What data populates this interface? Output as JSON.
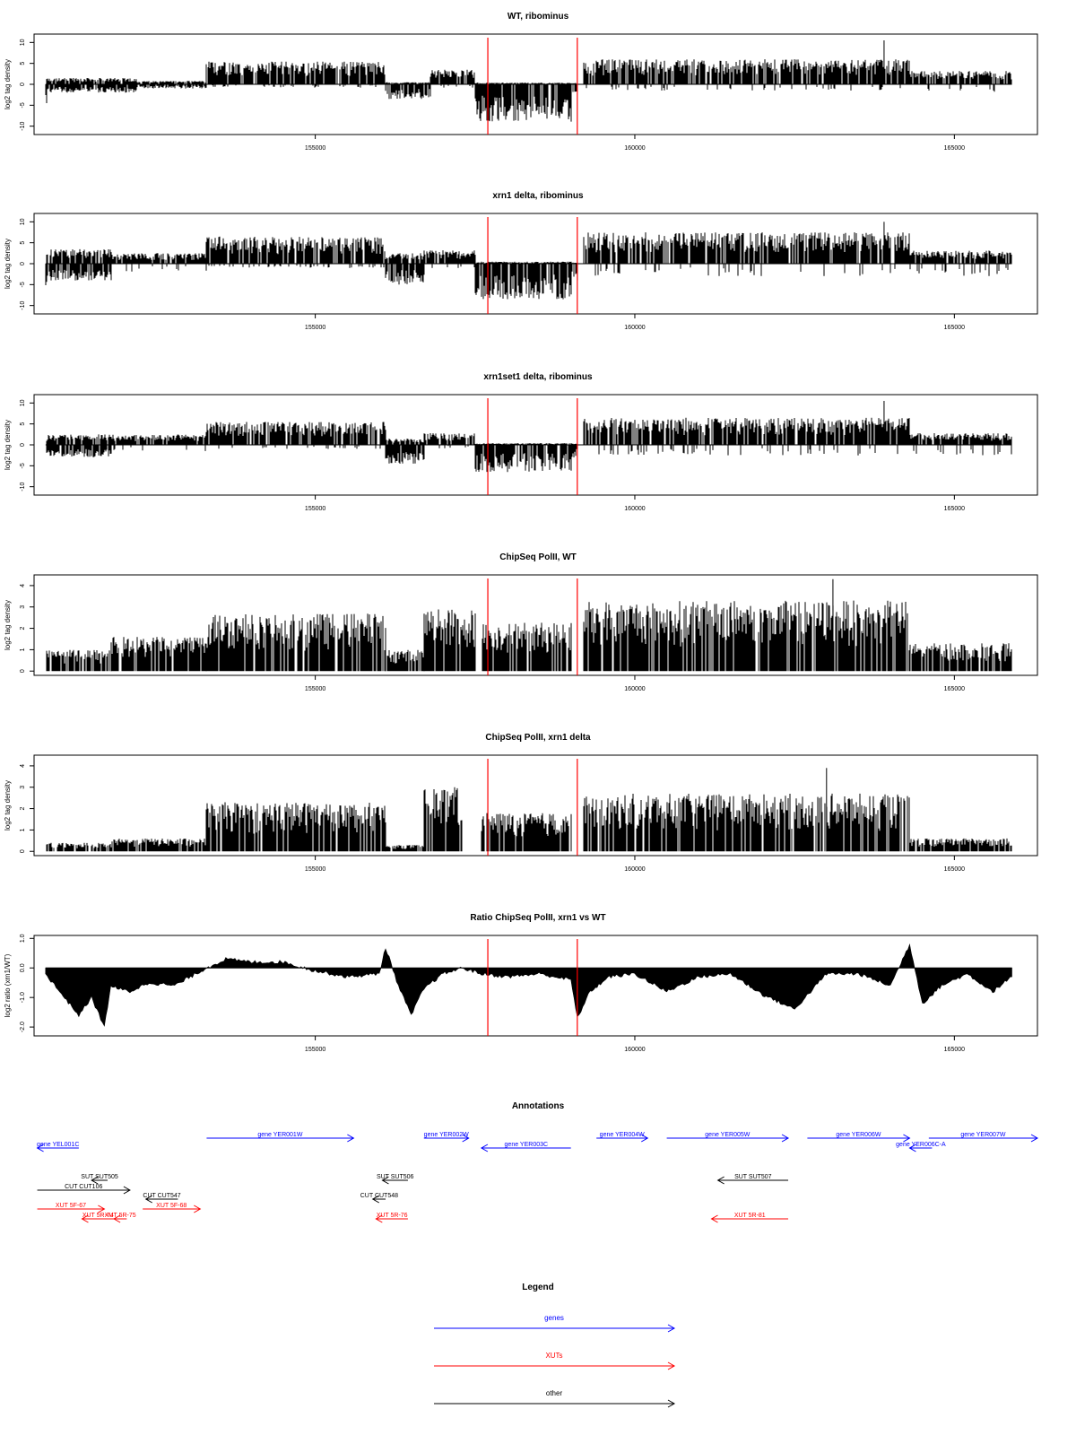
{
  "chart_data": [
    {
      "type": "bar",
      "title": "WT, ribominus",
      "ylabel": "log2 tag density",
      "xlabel": "",
      "xlim": [
        150600,
        166300
      ],
      "ylim": [
        -12,
        12
      ],
      "yticks": [
        -10,
        -5,
        0,
        5,
        10
      ],
      "xticks": [
        155000,
        160000,
        165000
      ],
      "zero_line": true,
      "markers": [
        157700,
        159100
      ],
      "marker_color": "#ff0000",
      "segments": [
        {
          "start": 150780,
          "end": 150800,
          "pos": 0,
          "neg": 4.5
        },
        {
          "start": 150800,
          "end": 152200,
          "pos": 1.5,
          "neg": 2
        },
        {
          "start": 152200,
          "end": 153300,
          "pos": 0.8,
          "neg": 1
        },
        {
          "start": 153300,
          "end": 156100,
          "pos": 5.5,
          "neg": 0.8
        },
        {
          "start": 156100,
          "end": 156800,
          "pos": 0.5,
          "neg": 3.5
        },
        {
          "start": 156800,
          "end": 157500,
          "pos": 3.5,
          "neg": 0.8
        },
        {
          "start": 157500,
          "end": 159000,
          "pos": 0.4,
          "neg": 9
        },
        {
          "start": 159000,
          "end": 159100,
          "pos": 0.3,
          "neg": 2
        },
        {
          "start": 159200,
          "end": 164300,
          "pos": 6,
          "neg": 1.5
        },
        {
          "start": 164300,
          "end": 165900,
          "pos": 3.2,
          "neg": 1.8
        }
      ],
      "peaks": [
        {
          "x": 163900,
          "y": 10.5
        }
      ]
    },
    {
      "type": "bar",
      "title": "xrn1 delta, ribominus",
      "ylabel": "log2 tag density",
      "xlabel": "",
      "xlim": [
        150600,
        166300
      ],
      "ylim": [
        -12,
        12
      ],
      "yticks": [
        -10,
        -5,
        0,
        5,
        10
      ],
      "xticks": [
        155000,
        160000,
        165000
      ],
      "zero_line": true,
      "markers": [
        157700,
        159100
      ],
      "marker_color": "#ff0000",
      "segments": [
        {
          "start": 150780,
          "end": 150800,
          "pos": 0,
          "neg": 7
        },
        {
          "start": 150800,
          "end": 151800,
          "pos": 3.5,
          "neg": 4
        },
        {
          "start": 151800,
          "end": 153300,
          "pos": 2.5,
          "neg": 2
        },
        {
          "start": 153300,
          "end": 156100,
          "pos": 6.5,
          "neg": 1
        },
        {
          "start": 156100,
          "end": 156700,
          "pos": 2.5,
          "neg": 5
        },
        {
          "start": 156700,
          "end": 157500,
          "pos": 3.2,
          "neg": 1.2
        },
        {
          "start": 157500,
          "end": 159000,
          "pos": 0.5,
          "neg": 8.5
        },
        {
          "start": 159000,
          "end": 159100,
          "pos": 0.3,
          "neg": 4
        },
        {
          "start": 159200,
          "end": 164300,
          "pos": 7.5,
          "neg": 3
        },
        {
          "start": 164300,
          "end": 165900,
          "pos": 3.2,
          "neg": 3
        }
      ],
      "peaks": [
        {
          "x": 163900,
          "y": 10
        }
      ]
    },
    {
      "type": "bar",
      "title": "xrn1set1 delta, ribominus",
      "ylabel": "log2 tag density",
      "xlabel": "",
      "xlim": [
        150600,
        166300
      ],
      "ylim": [
        -12,
        12
      ],
      "yticks": [
        -10,
        -5,
        0,
        5,
        10
      ],
      "xticks": [
        155000,
        160000,
        165000
      ],
      "zero_line": true,
      "markers": [
        157700,
        159100
      ],
      "marker_color": "#ff0000",
      "segments": [
        {
          "start": 150780,
          "end": 150800,
          "pos": 0,
          "neg": 3
        },
        {
          "start": 150800,
          "end": 151800,
          "pos": 2.5,
          "neg": 3
        },
        {
          "start": 151800,
          "end": 153300,
          "pos": 2.5,
          "neg": 1.5
        },
        {
          "start": 153300,
          "end": 156100,
          "pos": 5.5,
          "neg": 1
        },
        {
          "start": 156100,
          "end": 156700,
          "pos": 1.5,
          "neg": 4.5
        },
        {
          "start": 156700,
          "end": 157500,
          "pos": 2.8,
          "neg": 0.8
        },
        {
          "start": 157500,
          "end": 159000,
          "pos": 0.4,
          "neg": 6.5
        },
        {
          "start": 159000,
          "end": 159100,
          "pos": 0.3,
          "neg": 3
        },
        {
          "start": 159200,
          "end": 164300,
          "pos": 6.5,
          "neg": 2.5
        },
        {
          "start": 164300,
          "end": 165900,
          "pos": 2.8,
          "neg": 2.5
        }
      ],
      "peaks": [
        {
          "x": 163900,
          "y": 10.5
        }
      ]
    },
    {
      "type": "bar",
      "title": "ChipSeq PolII, WT",
      "ylabel": "log2 tag density",
      "xlabel": "",
      "xlim": [
        150600,
        166300
      ],
      "ylim": [
        -0.2,
        4.5
      ],
      "yticks": [
        0,
        1,
        2,
        3,
        4
      ],
      "xticks": [
        155000,
        160000,
        165000
      ],
      "zero_line": false,
      "markers": [
        157700,
        159100
      ],
      "marker_color": "#ff0000",
      "segments": [
        {
          "start": 150800,
          "end": 151800,
          "pos": 1,
          "neg": 0
        },
        {
          "start": 151800,
          "end": 153300,
          "pos": 1.6,
          "neg": 0
        },
        {
          "start": 153300,
          "end": 156100,
          "pos": 2.7,
          "neg": 0
        },
        {
          "start": 156100,
          "end": 156700,
          "pos": 1,
          "neg": 0
        },
        {
          "start": 156700,
          "end": 157500,
          "pos": 2.9,
          "neg": 0
        },
        {
          "start": 157600,
          "end": 159000,
          "pos": 2.3,
          "neg": 0
        },
        {
          "start": 159200,
          "end": 164300,
          "pos": 3.3,
          "neg": 0
        },
        {
          "start": 164300,
          "end": 165900,
          "pos": 1.3,
          "neg": 0
        }
      ],
      "peaks": [
        {
          "x": 163100,
          "y": 4.3
        }
      ]
    },
    {
      "type": "bar",
      "title": "ChipSeq PolII, xrn1 delta",
      "ylabel": "log2 tag density",
      "xlabel": "",
      "xlim": [
        150600,
        166300
      ],
      "ylim": [
        -0.2,
        4.5
      ],
      "yticks": [
        0,
        1,
        2,
        3,
        4
      ],
      "xticks": [
        155000,
        160000,
        165000
      ],
      "zero_line": false,
      "markers": [
        157700,
        159100
      ],
      "marker_color": "#ff0000",
      "segments": [
        {
          "start": 150800,
          "end": 151800,
          "pos": 0.4,
          "neg": 0
        },
        {
          "start": 151800,
          "end": 153300,
          "pos": 0.6,
          "neg": 0
        },
        {
          "start": 153300,
          "end": 156100,
          "pos": 2.3,
          "neg": 0
        },
        {
          "start": 156100,
          "end": 156700,
          "pos": 0.3,
          "neg": 0
        },
        {
          "start": 156700,
          "end": 157300,
          "pos": 3.0,
          "neg": 0
        },
        {
          "start": 157600,
          "end": 159000,
          "pos": 1.8,
          "neg": 0
        },
        {
          "start": 159200,
          "end": 164300,
          "pos": 2.7,
          "neg": 0
        },
        {
          "start": 164300,
          "end": 165900,
          "pos": 0.6,
          "neg": 0
        }
      ],
      "peaks": [
        {
          "x": 163000,
          "y": 3.9
        }
      ]
    },
    {
      "type": "area",
      "title": "Ratio ChipSeq PolII, xrn1 vs WT",
      "ylabel": "log2 ratio (xrn1/WT)",
      "xlabel": "",
      "xlim": [
        150600,
        166300
      ],
      "ylim": [
        -2.3,
        1.1
      ],
      "yticks": [
        -2.0,
        -1.0,
        0.0,
        1.0
      ],
      "ytick_labels": [
        "-2.0",
        "-1.0",
        "0.0",
        "1.0"
      ],
      "xticks": [
        155000,
        160000,
        165000
      ],
      "zero_line": true,
      "markers": [
        157700,
        159100
      ],
      "marker_color": "#ff0000",
      "x": [
        150780,
        151000,
        151300,
        151500,
        151700,
        151800,
        151900,
        152100,
        152400,
        152800,
        153300,
        153600,
        154000,
        154500,
        155000,
        155500,
        156000,
        156100,
        156300,
        156500,
        156700,
        157000,
        157300,
        157600,
        158000,
        158500,
        159000,
        159100,
        159300,
        159600,
        160000,
        160500,
        161000,
        161500,
        162000,
        162500,
        163000,
        163500,
        164000,
        164300,
        164500,
        164800,
        165200,
        165600,
        165900
      ],
      "values": [
        -0.2,
        -0.8,
        -1.6,
        -1.0,
        -2.0,
        -0.6,
        -0.7,
        -0.8,
        -0.5,
        -0.6,
        0.0,
        0.3,
        0.2,
        0.2,
        -0.1,
        -0.3,
        -0.2,
        0.7,
        -0.6,
        -1.6,
        -0.7,
        -0.2,
        0.0,
        -0.2,
        -0.3,
        -0.2,
        -0.4,
        -1.7,
        -0.8,
        -0.3,
        -0.2,
        -0.8,
        -0.3,
        -0.2,
        -0.9,
        -1.4,
        -0.2,
        -0.2,
        -0.6,
        0.8,
        -1.2,
        -0.6,
        -0.2,
        -0.8,
        -0.3
      ]
    }
  ],
  "annotations": {
    "title": "Annotations",
    "xlim": [
      150600,
      166300
    ],
    "items": [
      {
        "label": "gene YEL001C",
        "start": 150650,
        "end": 151300,
        "strand": "-",
        "row": 1,
        "cat": "gene"
      },
      {
        "label": "gene YER001W",
        "start": 153300,
        "end": 155600,
        "strand": "+",
        "row": 0,
        "cat": "gene"
      },
      {
        "label": "gene YER002W",
        "start": 156700,
        "end": 157400,
        "strand": "+",
        "row": 0,
        "cat": "gene"
      },
      {
        "label": "gene YER003C",
        "start": 157600,
        "end": 159000,
        "strand": "-",
        "row": 1,
        "cat": "gene"
      },
      {
        "label": "gene YER004W",
        "start": 159400,
        "end": 160200,
        "strand": "+",
        "row": 0,
        "cat": "gene"
      },
      {
        "label": "gene YER005W",
        "start": 160500,
        "end": 162400,
        "strand": "+",
        "row": 0,
        "cat": "gene"
      },
      {
        "label": "gene YER006W",
        "start": 162700,
        "end": 164300,
        "strand": "+",
        "row": 0,
        "cat": "gene"
      },
      {
        "label": "gene YER006C-A",
        "start": 164300,
        "end": 164650,
        "strand": "-",
        "row": 1,
        "cat": "gene"
      },
      {
        "label": "gene YER007W",
        "start": 164600,
        "end": 166300,
        "strand": "+",
        "row": 0,
        "cat": "gene"
      },
      {
        "label": "SUT SUT505",
        "start": 151500,
        "end": 151750,
        "strand": "-",
        "row": 3,
        "cat": "other"
      },
      {
        "label": "CUT CUT106",
        "start": 150650,
        "end": 152100,
        "strand": "+",
        "row": 4,
        "cat": "other"
      },
      {
        "label": "CUT CUT547",
        "start": 152350,
        "end": 152850,
        "strand": "-",
        "row": 5,
        "cat": "other"
      },
      {
        "label": "XUT 5F-67",
        "start": 150650,
        "end": 151700,
        "strand": "+",
        "row": 6,
        "cat": "XUT"
      },
      {
        "label": "XUT 5F-68",
        "start": 152300,
        "end": 153200,
        "strand": "+",
        "row": 6,
        "cat": "XUT"
      },
      {
        "label": "XUT 5R-74",
        "start": 151350,
        "end": 151850,
        "strand": "-",
        "row": 7,
        "cat": "XUT"
      },
      {
        "label": "XUT 5R-75",
        "start": 151850,
        "end": 152050,
        "strand": "-",
        "row": 7,
        "cat": "XUT"
      },
      {
        "label": "SUT SUT506",
        "start": 156050,
        "end": 156450,
        "strand": "-",
        "row": 3,
        "cat": "other"
      },
      {
        "label": "CUT CUT548",
        "start": 155900,
        "end": 156100,
        "strand": "-",
        "row": 5,
        "cat": "other"
      },
      {
        "label": "XUT 5R-76",
        "start": 155950,
        "end": 156450,
        "strand": "-",
        "row": 7,
        "cat": "XUT"
      },
      {
        "label": "SUT SUT507",
        "start": 161300,
        "end": 162400,
        "strand": "-",
        "row": 3,
        "cat": "other"
      },
      {
        "label": "XUT 5R-81",
        "start": 161200,
        "end": 162400,
        "strand": "-",
        "row": 7,
        "cat": "XUT"
      }
    ]
  },
  "legend": {
    "title": "Legend",
    "entries": [
      {
        "label": "genes",
        "color": "#0000ff"
      },
      {
        "label": "XUTs",
        "color": "#ff0000"
      },
      {
        "label": "other",
        "color": "#000000"
      }
    ]
  },
  "colors": {
    "gene": "#0000ff",
    "XUT": "#ff0000",
    "other": "#000000",
    "marker": "#ff0000",
    "bars": "#000000"
  }
}
